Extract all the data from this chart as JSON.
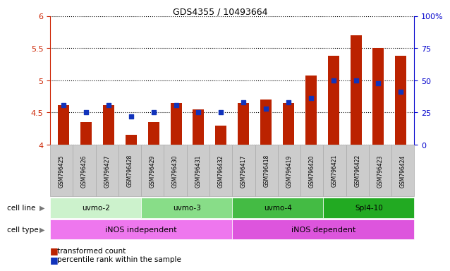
{
  "title": "GDS4355 / 10493664",
  "samples": [
    "GSM796425",
    "GSM796426",
    "GSM796427",
    "GSM796428",
    "GSM796429",
    "GSM796430",
    "GSM796431",
    "GSM796432",
    "GSM796417",
    "GSM796418",
    "GSM796419",
    "GSM796420",
    "GSM796421",
    "GSM796422",
    "GSM796423",
    "GSM796424"
  ],
  "red_values": [
    4.62,
    4.35,
    4.62,
    4.15,
    4.35,
    4.65,
    4.55,
    4.3,
    4.65,
    4.7,
    4.65,
    5.07,
    5.38,
    5.7,
    5.5,
    5.38
  ],
  "blue_percentiles": [
    31,
    25,
    31,
    22,
    25,
    31,
    25,
    25,
    33,
    28,
    33,
    36,
    50,
    50,
    48,
    41
  ],
  "ylim_left": [
    4.0,
    6.0
  ],
  "ylim_right": [
    0,
    100
  ],
  "yticks_left": [
    4.0,
    4.5,
    5.0,
    5.5,
    6.0
  ],
  "ytick_labels_left": [
    "4",
    "4.5",
    "5",
    "5.5",
    "6"
  ],
  "yticks_right": [
    0,
    25,
    50,
    75,
    100
  ],
  "ytick_labels_right": [
    "0",
    "25",
    "50",
    "75",
    "100%"
  ],
  "cell_line_groups": [
    {
      "label": "uvmo-2",
      "start": 0,
      "end": 3,
      "color": "#ccf2cc"
    },
    {
      "label": "uvmo-3",
      "start": 4,
      "end": 7,
      "color": "#88dd88"
    },
    {
      "label": "uvmo-4",
      "start": 8,
      "end": 11,
      "color": "#44bb44"
    },
    {
      "label": "Spl4-10",
      "start": 12,
      "end": 15,
      "color": "#22aa22"
    }
  ],
  "cell_type_groups": [
    {
      "label": "iNOS independent",
      "start": 0,
      "end": 7,
      "color": "#ee77ee"
    },
    {
      "label": "iNOS dependent",
      "start": 8,
      "end": 15,
      "color": "#dd55dd"
    }
  ],
  "bar_color_red": "#bb2200",
  "bar_color_blue": "#1133bb",
  "legend_red": "transformed count",
  "legend_blue": "percentile rank within the sample",
  "left_axis_color": "#cc2200",
  "right_axis_color": "#0000cc",
  "bar_width": 0.5,
  "baseline": 4.0,
  "sample_box_color": "#cccccc",
  "sample_box_edge": "#aaaaaa"
}
